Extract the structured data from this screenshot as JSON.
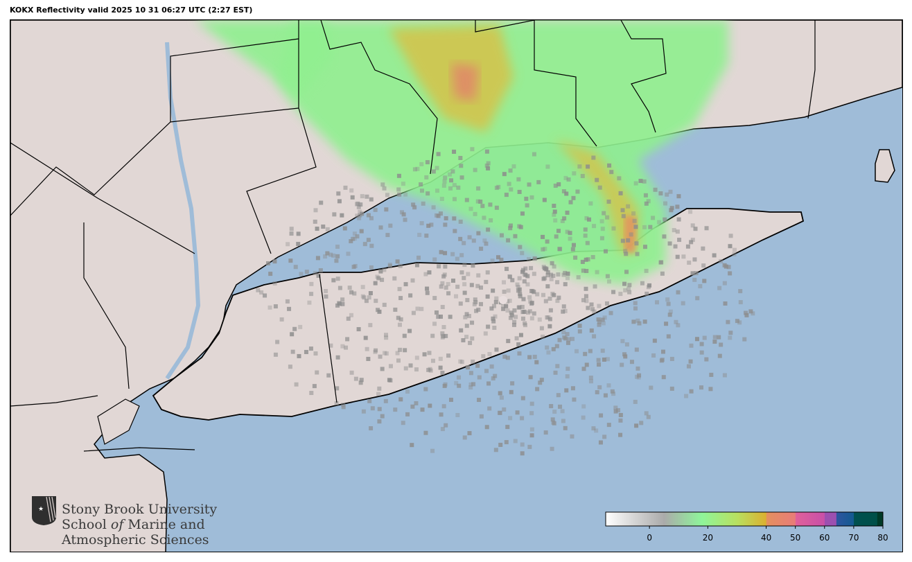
{
  "title": "KOKX Reflectivity valid 2025 10 31 06:27 UTC (2:27 EST)",
  "colors": {
    "ocean": "#9fbcd8",
    "land": "#e1d7d5",
    "borders": "#000000",
    "echo_light": "#8ff08f",
    "echo_mid": "#d4c04a",
    "echo_high": "#e8866a",
    "clutter": "#8c8c8c"
  },
  "colorbar": {
    "range": [
      -15,
      80
    ],
    "ticks": [
      {
        "value": 0,
        "label": "0"
      },
      {
        "value": 20,
        "label": "20"
      },
      {
        "value": 40,
        "label": "40"
      },
      {
        "value": 50,
        "label": "50"
      },
      {
        "value": 60,
        "label": "60"
      },
      {
        "value": 70,
        "label": "70"
      },
      {
        "value": 80,
        "label": "80"
      }
    ],
    "stops": [
      {
        "value": -15,
        "color": "#ffffff"
      },
      {
        "value": 5,
        "color": "#aaaaaa"
      },
      {
        "value": 18,
        "color": "#8ff59a"
      },
      {
        "value": 30,
        "color": "#b8e060"
      },
      {
        "value": 40,
        "color": "#dbb030"
      },
      {
        "value": 40.1,
        "color": "#e4905e"
      },
      {
        "value": 50,
        "color": "#e87c78"
      },
      {
        "value": 50.1,
        "color": "#e0609a"
      },
      {
        "value": 60,
        "color": "#c850a8"
      },
      {
        "value": 60.1,
        "color": "#9c50b0"
      },
      {
        "value": 64,
        "color": "#9c50b0"
      },
      {
        "value": 64.1,
        "color": "#2e55a0"
      },
      {
        "value": 70,
        "color": "#135a90"
      },
      {
        "value": 70.1,
        "color": "#005050"
      },
      {
        "value": 78,
        "color": "#005048"
      },
      {
        "value": 78.1,
        "color": "#003a28"
      },
      {
        "value": 80,
        "color": "#003a28"
      }
    ]
  },
  "logo": {
    "line1": "Stony Brook University",
    "line2a": "School ",
    "line2b": "of",
    "line2c": " Marine and",
    "line3": "Atmospheric Sciences"
  }
}
